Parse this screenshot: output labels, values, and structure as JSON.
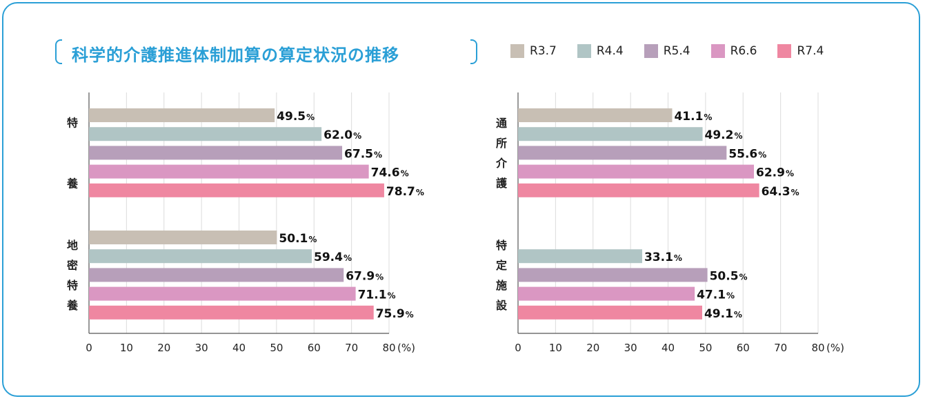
{
  "title": "科学的介護推進体制加算の算定状況の推移",
  "legend": [
    {
      "label": "R3.7",
      "color": "#c8bfb4"
    },
    {
      "label": "R4.4",
      "color": "#b0c5c5"
    },
    {
      "label": "R5.4",
      "color": "#b79fba"
    },
    {
      "label": "R6.6",
      "color": "#da97c2"
    },
    {
      "label": "R7.4",
      "color": "#ef87a1"
    }
  ],
  "chart_data": [
    {
      "type": "bar",
      "orientation": "horizontal",
      "xlim": [
        0,
        80
      ],
      "xticks": [
        "0",
        "10",
        "20",
        "30",
        "40",
        "50",
        "60",
        "70",
        "80"
      ],
      "unit_label": "(%)",
      "value_suffix": "%",
      "groups": [
        {
          "label_chars": [
            "特",
            "養"
          ],
          "series": [
            "R3.7",
            "R4.4",
            "R5.4",
            "R6.6",
            "R7.4"
          ],
          "values": [
            49.5,
            62.0,
            67.5,
            74.6,
            78.7
          ]
        },
        {
          "label_chars": [
            "地",
            "密",
            "特",
            "養"
          ],
          "series": [
            "R3.7",
            "R4.4",
            "R5.4",
            "R6.6",
            "R7.4"
          ],
          "values": [
            50.1,
            59.4,
            67.9,
            71.1,
            75.9
          ]
        }
      ]
    },
    {
      "type": "bar",
      "orientation": "horizontal",
      "xlim": [
        0,
        80
      ],
      "xticks": [
        "0",
        "10",
        "20",
        "30",
        "40",
        "50",
        "60",
        "70",
        "80"
      ],
      "unit_label": "(%)",
      "value_suffix": "%",
      "groups": [
        {
          "label_chars": [
            "通",
            "所",
            "介",
            "護"
          ],
          "series": [
            "R3.7",
            "R4.4",
            "R5.4",
            "R6.6",
            "R7.4"
          ],
          "values": [
            41.1,
            49.2,
            55.6,
            62.9,
            64.3
          ]
        },
        {
          "label_chars": [
            "特",
            "定",
            "施",
            "設"
          ],
          "series": [
            "R4.4",
            "R5.4",
            "R6.6",
            "R7.4"
          ],
          "values": [
            33.1,
            50.5,
            47.1,
            49.1
          ]
        }
      ]
    }
  ]
}
